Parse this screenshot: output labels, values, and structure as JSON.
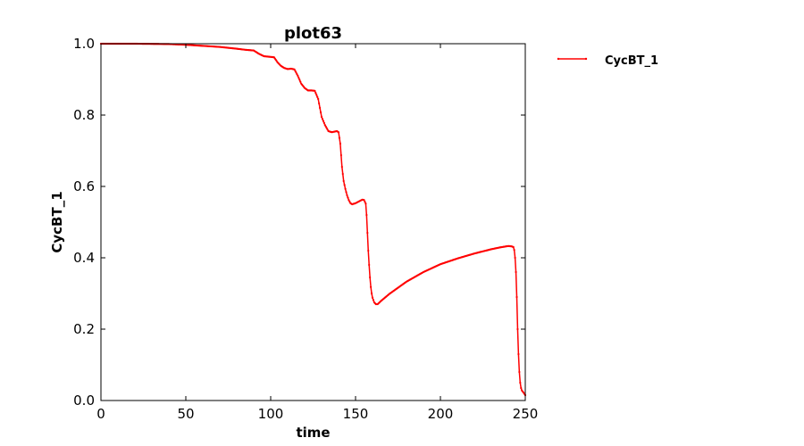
{
  "chart_data": {
    "type": "line",
    "title": "plot63",
    "xlabel": "time",
    "ylabel": "CycBT_1",
    "xlim": [
      0,
      250
    ],
    "ylim": [
      0,
      1.0
    ],
    "xticks": [
      0,
      50,
      100,
      150,
      200,
      250
    ],
    "xtick_labels": [
      "0",
      "50",
      "100",
      "150",
      "200",
      "250"
    ],
    "yticks": [
      0,
      0.2,
      0.4,
      0.6,
      0.8,
      1.0
    ],
    "ytick_labels": [
      "0.0",
      "0.2",
      "0.4",
      "0.6",
      "0.8",
      "1.0"
    ],
    "grid": false,
    "legend_position": "outside-top-right",
    "series": [
      {
        "name": "CycBT_1",
        "color": "#ff0000",
        "x": [
          0,
          20,
          40,
          50,
          60,
          70,
          80,
          85,
          90,
          93,
          96,
          100,
          102,
          104,
          106,
          108,
          110,
          112,
          114,
          116,
          118,
          120,
          122,
          124,
          126,
          128,
          130,
          132,
          134,
          136,
          138,
          139,
          140,
          141,
          142,
          143,
          144,
          145,
          146,
          147,
          148,
          150,
          152,
          154,
          155,
          156,
          156.5,
          157,
          157.5,
          158,
          158.5,
          159,
          159.5,
          160,
          161,
          162,
          163,
          165,
          170,
          180,
          190,
          200,
          210,
          220,
          230,
          235,
          240,
          242,
          243,
          243.5,
          244,
          244.5,
          245,
          245.5,
          246,
          246.5,
          247,
          247.5,
          248,
          249,
          250
        ],
        "y": [
          1.0,
          1.0,
          0.999,
          0.997,
          0.994,
          0.991,
          0.986,
          0.983,
          0.981,
          0.972,
          0.965,
          0.963,
          0.962,
          0.948,
          0.938,
          0.932,
          0.929,
          0.93,
          0.928,
          0.91,
          0.888,
          0.876,
          0.869,
          0.869,
          0.868,
          0.845,
          0.795,
          0.772,
          0.755,
          0.752,
          0.754,
          0.755,
          0.752,
          0.72,
          0.655,
          0.615,
          0.593,
          0.575,
          0.562,
          0.553,
          0.55,
          0.553,
          0.558,
          0.563,
          0.562,
          0.552,
          0.52,
          0.47,
          0.42,
          0.38,
          0.345,
          0.318,
          0.3,
          0.288,
          0.275,
          0.27,
          0.27,
          0.279,
          0.299,
          0.333,
          0.36,
          0.382,
          0.398,
          0.412,
          0.424,
          0.429,
          0.433,
          0.432,
          0.43,
          0.422,
          0.4,
          0.36,
          0.29,
          0.2,
          0.13,
          0.08,
          0.05,
          0.035,
          0.028,
          0.022,
          0.015
        ]
      }
    ]
  }
}
